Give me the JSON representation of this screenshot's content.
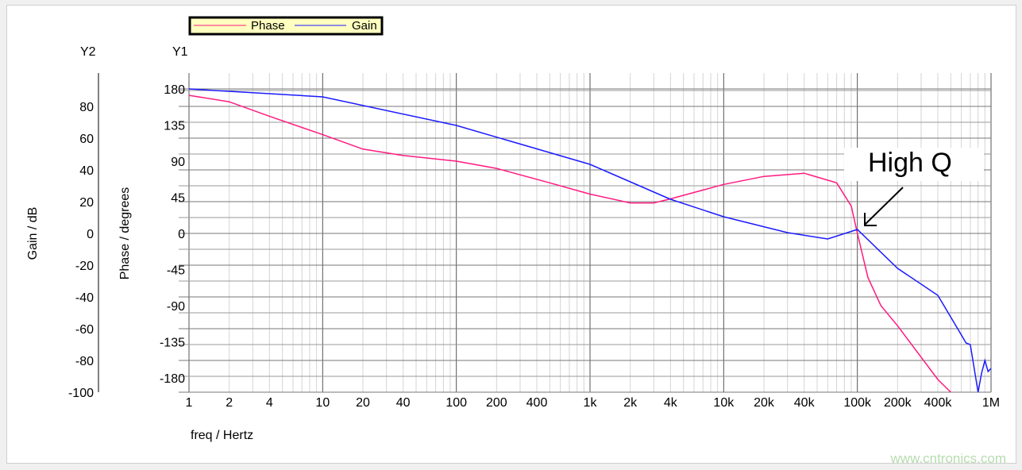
{
  "chart_data": {
    "type": "line",
    "xlabel": "freq / Hertz",
    "y1label": "Phase / degrees",
    "y2label": "Gain / dB",
    "y1_title": "Y1",
    "y2_title": "Y2",
    "x_scale": "log",
    "xlim": [
      1,
      1000000
    ],
    "y1lim": [
      -198,
      180
    ],
    "y2lim": [
      -100,
      91
    ],
    "grid": true,
    "x_ticks": [
      1,
      2,
      4,
      10,
      20,
      40,
      100,
      200,
      400,
      1000,
      2000,
      4000,
      10000,
      20000,
      40000,
      100000,
      200000,
      400000,
      1000000
    ],
    "x_tick_labels": [
      "1",
      "2",
      "4",
      "10",
      "20",
      "40",
      "100",
      "200",
      "400",
      "1k",
      "2k",
      "4k",
      "10k",
      "20k",
      "40k",
      "100k",
      "200k",
      "400k",
      "1M"
    ],
    "y1_ticks": [
      180,
      135,
      90,
      45,
      0,
      -45,
      -90,
      -135,
      -180
    ],
    "y1_tick_labels": [
      "180",
      "135",
      "90",
      "45",
      "0",
      "-45",
      "-90",
      "-135",
      "-180"
    ],
    "y2_ticks": [
      80,
      60,
      40,
      20,
      0,
      -20,
      -40,
      -60,
      -80,
      -100
    ],
    "y2_tick_labels": [
      "80",
      "60",
      "40",
      "20",
      "0",
      "-20",
      "-40",
      "-60",
      "-80",
      "-100"
    ],
    "legend": {
      "placement": "top",
      "background": "#ffffc0"
    },
    "annotation": {
      "text": "High Q",
      "x": 100000,
      "y2": 2.5
    },
    "series": [
      {
        "name": "Phase",
        "axis": "y1",
        "color": "#ff1a80",
        "x": [
          1,
          2,
          4,
          10,
          20,
          40,
          100,
          200,
          500,
          1000,
          2000,
          3000,
          4000,
          10000,
          20000,
          40000,
          70000,
          90000,
          100000,
          120000,
          150000,
          200000,
          400000,
          500000
        ],
        "y": [
          172,
          164,
          146,
          123,
          105,
          97,
          90,
          81,
          63,
          49,
          38,
          38,
          43,
          61,
          71,
          75,
          63,
          34,
          0,
          -55,
          -90,
          -115,
          -182,
          -199
        ]
      },
      {
        "name": "Gain",
        "axis": "y2",
        "color": "#1a1aff",
        "x": [
          1,
          10,
          100,
          1000,
          4000,
          10000,
          30000,
          60000,
          100000,
          200000,
          400000,
          600000,
          650000,
          700000,
          800000,
          850000,
          900000,
          950000,
          1000000
        ],
        "y": [
          91,
          86,
          68,
          43.5,
          21.5,
          10.5,
          0.5,
          -3.5,
          2.5,
          -22,
          -39,
          -64,
          -69,
          -70,
          -100,
          -88,
          -80,
          -87,
          -85
        ]
      }
    ]
  },
  "watermark": "www.cntronics.com"
}
